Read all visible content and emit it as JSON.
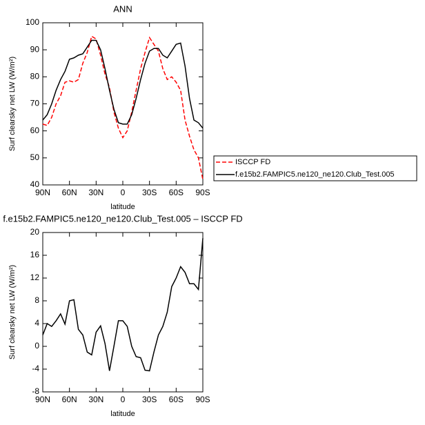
{
  "chart_data": [
    {
      "type": "line",
      "title": "ANN",
      "xlabel": "latitude",
      "ylabel": "Surf clearsky net LW (W/m²)",
      "x": [
        90,
        85,
        80,
        75,
        70,
        65,
        60,
        55,
        50,
        45,
        40,
        35,
        30,
        25,
        20,
        15,
        10,
        5,
        0,
        -5,
        -10,
        -15,
        -20,
        -25,
        -30,
        -35,
        -40,
        -45,
        -50,
        -55,
        -60,
        -65,
        -70,
        -75,
        -80,
        -85,
        -90
      ],
      "series": [
        {
          "name": "ISCCP FD",
          "color": "#ff0000",
          "linestyle": "dashed",
          "values": [
            62.5,
            62,
            65,
            70,
            73,
            78,
            78.5,
            78,
            79,
            85,
            89,
            95,
            94,
            88,
            81,
            76,
            67,
            61,
            57.5,
            60,
            67,
            75,
            83,
            89,
            94.5,
            92,
            89.5,
            83,
            79,
            80,
            78,
            75,
            64,
            58,
            53,
            50,
            42
          ]
        },
        {
          "name": "f.e15b2.FAMPIC5.ne120_ne120.Club_Test.005",
          "color": "#000000",
          "linestyle": "solid",
          "values": [
            64,
            66,
            70,
            75,
            79,
            82,
            86.5,
            87,
            88,
            88.5,
            91,
            93.5,
            93.5,
            90,
            83,
            75,
            68,
            63,
            62.5,
            62.5,
            66,
            72,
            79,
            85,
            89.5,
            90.5,
            90.5,
            88,
            87,
            89.5,
            92,
            92.5,
            84,
            72,
            64,
            63,
            61
          ]
        }
      ],
      "xlim": [
        90,
        -90
      ],
      "xticks": [
        {
          "value": 90,
          "label": "90N"
        },
        {
          "value": 60,
          "label": "60N"
        },
        {
          "value": 30,
          "label": "30N"
        },
        0,
        {
          "value": -30,
          "label": "30S"
        },
        {
          "value": -60,
          "label": "60S"
        },
        {
          "value": -90,
          "label": "90S"
        }
      ],
      "ylim": [
        40,
        100
      ],
      "yticks": [
        40,
        50,
        60,
        70,
        80,
        90,
        100
      ],
      "legend": "right"
    },
    {
      "type": "line",
      "title": "f.e15b2.FAMPIC5.ne120_ne120.Club_Test.005 – ISCCP FD",
      "xlabel": "latitude",
      "ylabel": "Surf clearsky net LW (W/m²)",
      "x": [
        90,
        85,
        80,
        75,
        70,
        65,
        60,
        55,
        50,
        45,
        40,
        35,
        30,
        25,
        20,
        15,
        10,
        5,
        0,
        -5,
        -10,
        -15,
        -20,
        -25,
        -30,
        -35,
        -40,
        -45,
        -50,
        -55,
        -60,
        -65,
        -70,
        -75,
        -80,
        -85,
        -90
      ],
      "series": [
        {
          "color": "#000000",
          "linestyle": "solid",
          "values": [
            2,
            4,
            3.5,
            4.5,
            5.7,
            3.9,
            8,
            8.2,
            3,
            2,
            -1,
            -1.5,
            2.5,
            3.6,
            0.5,
            -4.3,
            0,
            4.5,
            4.5,
            3.5,
            0,
            -1.8,
            -2,
            -4.2,
            -4.3,
            -1,
            2,
            3.5,
            6,
            10.5,
            12,
            14,
            13,
            11,
            11,
            10,
            19
          ]
        }
      ],
      "xlim": [
        90,
        -90
      ],
      "xticks": [
        {
          "value": 90,
          "label": "90N"
        },
        {
          "value": 60,
          "label": "60N"
        },
        {
          "value": 30,
          "label": "30N"
        },
        0,
        {
          "value": -30,
          "label": "30S"
        },
        {
          "value": -60,
          "label": "60S"
        },
        {
          "value": -90,
          "label": "90S"
        }
      ],
      "ylim": [
        -8,
        20
      ],
      "yticks": [
        -8,
        -4,
        0,
        4,
        8,
        12,
        16,
        20
      ]
    }
  ]
}
